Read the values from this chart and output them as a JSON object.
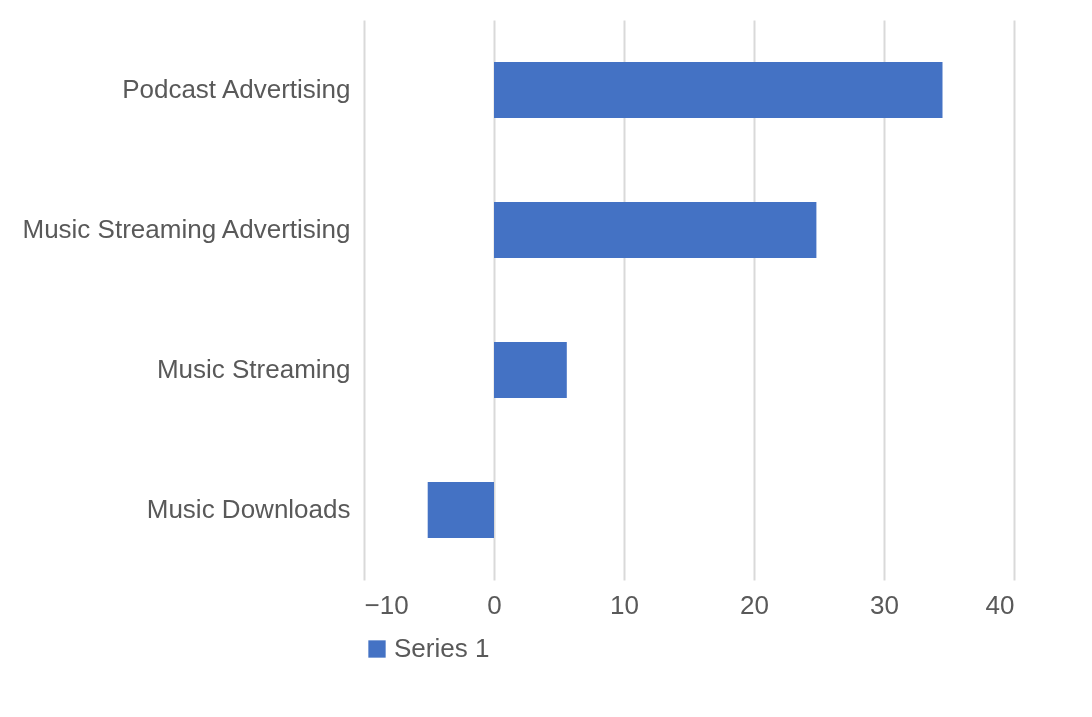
{
  "chart_data": {
    "type": "bar",
    "orientation": "horizontal",
    "categories": [
      "Podcast Advertising",
      "Music Streaming Advertising",
      "Music Streaming",
      "Music Downloads"
    ],
    "series": [
      {
        "name": "Series 1",
        "color": "#4472c4",
        "values": [
          34.5,
          24.8,
          5.6,
          -5.1
        ]
      }
    ],
    "xlim": [
      -10,
      40
    ],
    "xticks": [
      -10,
      0,
      10,
      20,
      30,
      40
    ],
    "grid": "x",
    "legend": "bottom"
  }
}
